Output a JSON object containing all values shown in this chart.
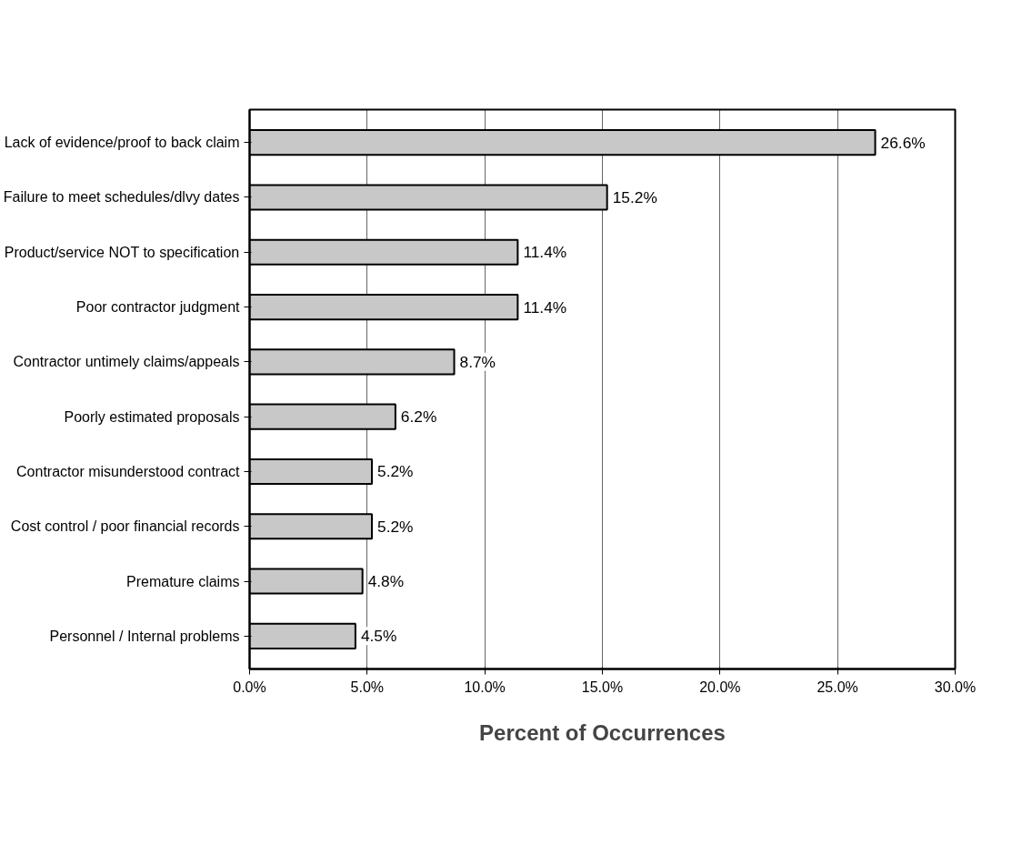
{
  "chart_data": {
    "type": "bar",
    "orientation": "horizontal",
    "xlabel": "Percent of Occurrences",
    "categories": [
      "Lack of evidence/proof to back claim",
      "Failure to meet schedules/dlvy dates",
      "Product/service NOT to specification",
      "Poor contractor judgment",
      "Contractor untimely claims/appeals",
      "Poorly estimated proposals",
      "Contractor misunderstood contract",
      "Cost control / poor financial records",
      "Premature claims",
      "Personnel / Internal problems"
    ],
    "values": [
      26.6,
      15.2,
      11.4,
      11.4,
      8.7,
      6.2,
      5.2,
      5.2,
      4.8,
      4.5
    ],
    "value_labels": [
      "26.6%",
      "15.2%",
      "11.4%",
      "11.4%",
      "8.7%",
      "6.2%",
      "5.2%",
      "5.2%",
      "4.8%",
      "4.5%"
    ],
    "color": "#c8c8c8",
    "xlim": [
      0,
      30
    ],
    "xticks": [
      {
        "value": 0,
        "label": "0.0%"
      },
      {
        "value": 5,
        "label": "5.0%"
      },
      {
        "value": 10,
        "label": "10.0%"
      },
      {
        "value": 15,
        "label": "15.0%"
      },
      {
        "value": 20,
        "label": "20.0%"
      },
      {
        "value": 25,
        "label": "25.0%"
      },
      {
        "value": 30,
        "label": "30.0%"
      }
    ],
    "grid": "x"
  }
}
